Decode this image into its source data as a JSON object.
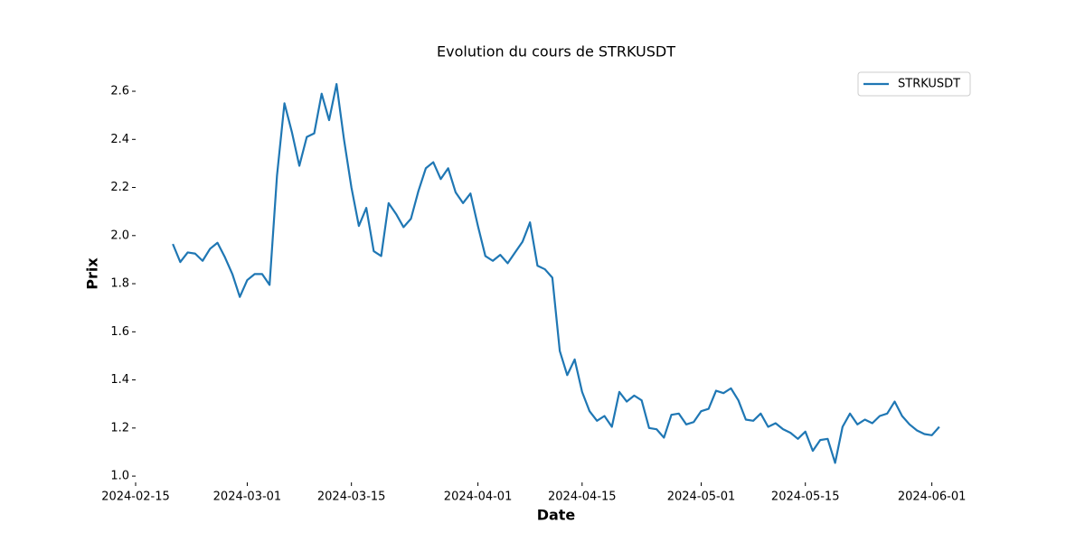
{
  "chart_data": {
    "type": "line",
    "title": "Evolution du cours de STRKUSDT",
    "x_label": "Date",
    "y_label": "Prix",
    "x": [
      "2024-02-20",
      "2024-02-21",
      "2024-02-22",
      "2024-02-23",
      "2024-02-24",
      "2024-02-25",
      "2024-02-26",
      "2024-02-27",
      "2024-02-28",
      "2024-02-29",
      "2024-03-01",
      "2024-03-02",
      "2024-03-03",
      "2024-03-04",
      "2024-03-05",
      "2024-03-06",
      "2024-03-07",
      "2024-03-08",
      "2024-03-09",
      "2024-03-10",
      "2024-03-11",
      "2024-03-12",
      "2024-03-13",
      "2024-03-14",
      "2024-03-15",
      "2024-03-16",
      "2024-03-17",
      "2024-03-18",
      "2024-03-19",
      "2024-03-20",
      "2024-03-21",
      "2024-03-22",
      "2024-03-23",
      "2024-03-24",
      "2024-03-25",
      "2024-03-26",
      "2024-03-27",
      "2024-03-28",
      "2024-03-29",
      "2024-03-30",
      "2024-03-31",
      "2024-04-01",
      "2024-04-02",
      "2024-04-03",
      "2024-04-04",
      "2024-04-05",
      "2024-04-06",
      "2024-04-07",
      "2024-04-08",
      "2024-04-09",
      "2024-04-10",
      "2024-04-11",
      "2024-04-12",
      "2024-04-13",
      "2024-04-14",
      "2024-04-15",
      "2024-04-16",
      "2024-04-17",
      "2024-04-18",
      "2024-04-19",
      "2024-04-20",
      "2024-04-21",
      "2024-04-22",
      "2024-04-23",
      "2024-04-24",
      "2024-04-25",
      "2024-04-26",
      "2024-04-27",
      "2024-04-28",
      "2024-04-29",
      "2024-04-30",
      "2024-05-01",
      "2024-05-02",
      "2024-05-03",
      "2024-05-04",
      "2024-05-05",
      "2024-05-06",
      "2024-05-07",
      "2024-05-08",
      "2024-05-09",
      "2024-05-10",
      "2024-05-11",
      "2024-05-12",
      "2024-05-13",
      "2024-05-14",
      "2024-05-15",
      "2024-05-16",
      "2024-05-17",
      "2024-05-18",
      "2024-05-19",
      "2024-05-20",
      "2024-05-21",
      "2024-05-22",
      "2024-05-23",
      "2024-05-24",
      "2024-05-25",
      "2024-05-26",
      "2024-05-27",
      "2024-05-28",
      "2024-05-29",
      "2024-05-30",
      "2024-05-31",
      "2024-06-01",
      "2024-06-02"
    ],
    "series": [
      {
        "name": "STRKUSDT",
        "color": "#1f77b4",
        "values": [
          1.965,
          1.89,
          1.93,
          1.925,
          1.895,
          1.945,
          1.97,
          1.91,
          1.84,
          1.745,
          1.815,
          1.84,
          1.84,
          1.795,
          2.25,
          2.55,
          2.43,
          2.29,
          2.41,
          2.425,
          2.59,
          2.48,
          2.63,
          2.4,
          2.2,
          2.04,
          2.115,
          1.935,
          1.915,
          2.135,
          2.09,
          2.035,
          2.07,
          2.185,
          2.28,
          2.305,
          2.235,
          2.28,
          2.18,
          2.135,
          2.175,
          2.04,
          1.915,
          1.895,
          1.92,
          1.885,
          1.93,
          1.975,
          2.055,
          1.875,
          1.86,
          1.825,
          1.52,
          1.42,
          1.485,
          1.35,
          1.27,
          1.23,
          1.25,
          1.205,
          1.35,
          1.31,
          1.335,
          1.315,
          1.2,
          1.195,
          1.16,
          1.255,
          1.26,
          1.215,
          1.225,
          1.27,
          1.28,
          1.355,
          1.345,
          1.365,
          1.315,
          1.235,
          1.23,
          1.26,
          1.205,
          1.22,
          1.195,
          1.18,
          1.155,
          1.185,
          1.105,
          1.15,
          1.155,
          1.055,
          1.205,
          1.26,
          1.215,
          1.235,
          1.22,
          1.25,
          1.26,
          1.31,
          1.25,
          1.215,
          1.19,
          1.175,
          1.17,
          1.205
        ]
      }
    ],
    "xlim": [
      "2024-02-15",
      "2024-06-07"
    ],
    "xticks": [
      "2024-02-15",
      "2024-03-01",
      "2024-03-15",
      "2024-04-01",
      "2024-04-15",
      "2024-05-01",
      "2024-05-15",
      "2024-06-01"
    ],
    "ylim": [
      0.974,
      2.709
    ],
    "yticks": [
      {
        "value": 1,
        "label": "1.0"
      },
      1.2,
      1.4,
      1.6,
      1.8,
      {
        "value": 2,
        "label": "2.0"
      },
      2.2,
      2.4,
      2.6
    ],
    "legend": "upper right",
    "grid": false
  }
}
